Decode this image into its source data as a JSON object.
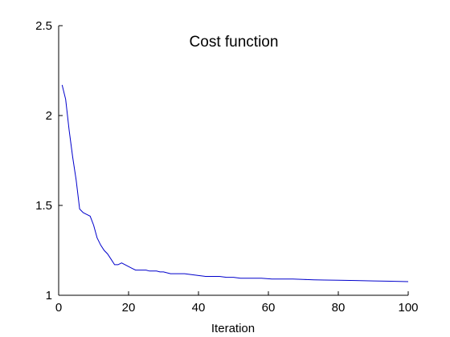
{
  "chart_data": {
    "type": "line",
    "title": "Cost function",
    "xlabel": "Iteration",
    "ylabel": "",
    "xlim": [
      0,
      100
    ],
    "ylim": [
      1,
      2.5
    ],
    "xticks": [
      0,
      20,
      40,
      60,
      80,
      100
    ],
    "yticks": [
      1,
      1.5,
      2,
      2.5
    ],
    "xtick_labels": [
      "0",
      "20",
      "40",
      "60",
      "80",
      "100"
    ],
    "ytick_labels": [
      "1",
      "1.5",
      "2",
      "2.5"
    ],
    "grid": false,
    "legend": false,
    "series": [
      {
        "color": "#0000cc",
        "x": [
          1,
          2,
          3,
          4,
          5,
          6,
          7,
          8,
          9,
          10,
          11,
          12,
          13,
          14,
          15,
          16,
          17,
          18,
          19,
          20,
          21,
          22,
          23,
          24,
          25,
          26,
          27,
          28,
          29,
          30,
          32,
          34,
          36,
          38,
          40,
          42,
          44,
          46,
          48,
          50,
          52,
          55,
          58,
          61,
          64,
          67,
          70,
          73,
          76,
          80,
          85,
          90,
          95,
          100
        ],
        "y": [
          2.17,
          2.09,
          1.92,
          1.77,
          1.64,
          1.48,
          1.46,
          1.45,
          1.44,
          1.39,
          1.32,
          1.28,
          1.25,
          1.23,
          1.2,
          1.17,
          1.17,
          1.18,
          1.17,
          1.16,
          1.15,
          1.14,
          1.14,
          1.14,
          1.14,
          1.135,
          1.135,
          1.135,
          1.13,
          1.13,
          1.12,
          1.12,
          1.12,
          1.115,
          1.11,
          1.105,
          1.105,
          1.105,
          1.1,
          1.1,
          1.095,
          1.095,
          1.095,
          1.09,
          1.09,
          1.09,
          1.088,
          1.086,
          1.085,
          1.084,
          1.082,
          1.08,
          1.078,
          1.076
        ]
      }
    ]
  }
}
